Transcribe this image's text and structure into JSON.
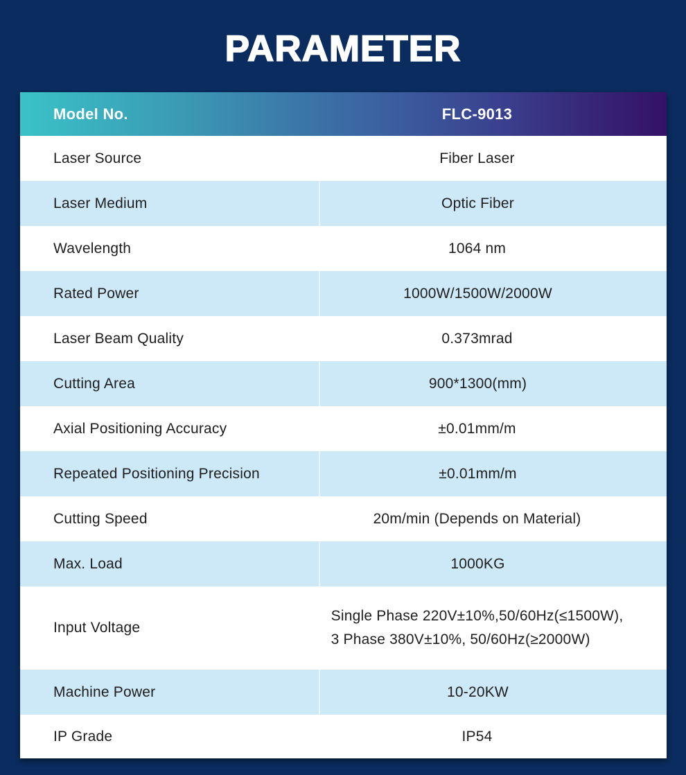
{
  "page": {
    "title": "PARAMETER"
  },
  "colors": {
    "background_navy": "#0a2c5e",
    "row_light_blue": "#cde9f8",
    "row_white": "#ffffff",
    "header_gradient_start_teal": "#3ac2c7",
    "header_gradient_end_purple": "#341166",
    "body_text": "#1d1d1d",
    "header_text": "#ffffff"
  },
  "table": {
    "header": {
      "label": "Model No.",
      "value": "FLC-9013"
    },
    "rows": [
      {
        "label": "Laser Source",
        "value": "Fiber Laser"
      },
      {
        "label": "Laser Medium",
        "value": "Optic Fiber"
      },
      {
        "label": "Wavelength",
        "value": "1064 nm"
      },
      {
        "label": "Rated Power",
        "value": "1000W/1500W/2000W"
      },
      {
        "label": "Laser Beam Quality",
        "value": "0.373mrad"
      },
      {
        "label": "Cutting Area",
        "value": "900*1300(mm)"
      },
      {
        "label": "Axial Positioning Accuracy",
        "value": "±0.01mm/m"
      },
      {
        "label": "Repeated Positioning Precision",
        "value": "±0.01mm/m"
      },
      {
        "label": "Cutting Speed",
        "value": "20m/min (Depends on Material)"
      },
      {
        "label": "Max. Load",
        "value": "1000KG"
      },
      {
        "label": "Input Voltage",
        "value": "Single Phase 220V±10%,50/60Hz(≤1500W),\n3 Phase 380V±10%, 50/60Hz(≥2000W)"
      },
      {
        "label": "Machine Power",
        "value": "10-20KW"
      },
      {
        "label": "IP Grade",
        "value": "IP54"
      }
    ]
  }
}
